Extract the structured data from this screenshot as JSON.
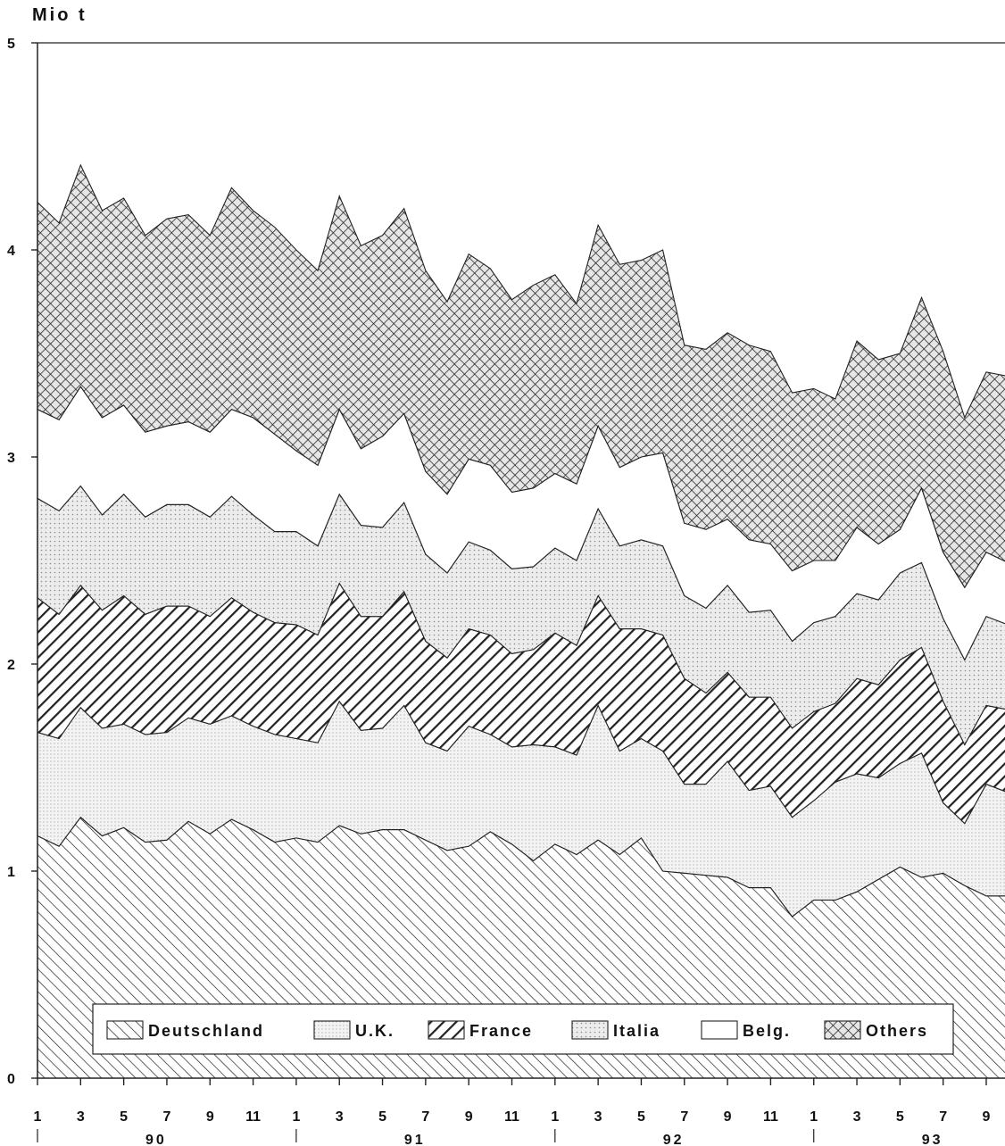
{
  "chart_data": {
    "type": "area",
    "stacked": true,
    "ylabel": "Mio t",
    "ylim": [
      0,
      5
    ],
    "yticks": [
      0,
      1,
      2,
      3,
      4,
      5
    ],
    "x": [
      1,
      2,
      3,
      4,
      5,
      6,
      7,
      8,
      9,
      10,
      11,
      12,
      13,
      14,
      15,
      16,
      17,
      18,
      19,
      20,
      21,
      22,
      23,
      24,
      25,
      26,
      27,
      28,
      29,
      30,
      31,
      32,
      33,
      34,
      35,
      36,
      37,
      38,
      39,
      40,
      41,
      42,
      43,
      44,
      45,
      46,
      47,
      48
    ],
    "x_tick_labels": [
      "1",
      "3",
      "5",
      "7",
      "9",
      "11",
      "1",
      "3",
      "5",
      "7",
      "9",
      "11",
      "1",
      "3",
      "5",
      "7",
      "9",
      "11",
      "1",
      "3",
      "5",
      "7",
      "9"
    ],
    "years": [
      "90",
      "91",
      "92",
      "93"
    ],
    "legend_position": "bottom",
    "grid": false,
    "series": [
      {
        "name": "Deutschland",
        "pattern": "light-diagonal-hatch",
        "values": [
          1.17,
          1.12,
          1.26,
          1.17,
          1.21,
          1.14,
          1.15,
          1.24,
          1.18,
          1.25,
          1.2,
          1.14,
          1.16,
          1.14,
          1.22,
          1.18,
          1.2,
          1.2,
          1.15,
          1.1,
          1.12,
          1.19,
          1.13,
          1.05,
          1.13,
          1.08,
          1.15,
          1.08,
          1.16,
          1.0,
          0.99,
          0.98,
          0.97,
          0.92,
          0.92,
          0.78,
          0.86,
          0.86,
          0.9,
          0.96,
          1.02,
          0.97,
          0.99,
          0.93,
          0.88,
          0.88,
          0.86,
          0.9
        ]
      },
      {
        "name": "U.K.",
        "pattern": "fine-dots",
        "values": [
          0.5,
          0.52,
          0.53,
          0.52,
          0.5,
          0.52,
          0.52,
          0.5,
          0.53,
          0.5,
          0.5,
          0.52,
          0.48,
          0.48,
          0.6,
          0.5,
          0.49,
          0.6,
          0.47,
          0.48,
          0.58,
          0.47,
          0.47,
          0.56,
          0.47,
          0.48,
          0.65,
          0.5,
          0.48,
          0.58,
          0.43,
          0.44,
          0.56,
          0.47,
          0.49,
          0.48,
          0.48,
          0.57,
          0.57,
          0.49,
          0.5,
          0.6,
          0.34,
          0.3,
          0.54,
          0.5,
          0.47,
          0.5
        ]
      },
      {
        "name": "France",
        "pattern": "heavy-diagonal-hatch",
        "values": [
          0.65,
          0.6,
          0.59,
          0.57,
          0.62,
          0.58,
          0.61,
          0.54,
          0.52,
          0.57,
          0.55,
          0.54,
          0.55,
          0.52,
          0.57,
          0.55,
          0.54,
          0.55,
          0.49,
          0.45,
          0.47,
          0.48,
          0.45,
          0.46,
          0.55,
          0.53,
          0.53,
          0.59,
          0.53,
          0.56,
          0.51,
          0.44,
          0.43,
          0.45,
          0.43,
          0.43,
          0.43,
          0.38,
          0.46,
          0.45,
          0.5,
          0.51,
          0.49,
          0.38,
          0.38,
          0.4,
          0.41,
          0.43
        ]
      },
      {
        "name": "Italia",
        "pattern": "dots",
        "values": [
          0.48,
          0.5,
          0.48,
          0.46,
          0.49,
          0.47,
          0.49,
          0.49,
          0.48,
          0.49,
          0.47,
          0.44,
          0.45,
          0.43,
          0.43,
          0.44,
          0.43,
          0.43,
          0.42,
          0.41,
          0.42,
          0.41,
          0.41,
          0.4,
          0.41,
          0.41,
          0.42,
          0.4,
          0.43,
          0.43,
          0.4,
          0.41,
          0.42,
          0.41,
          0.42,
          0.42,
          0.43,
          0.42,
          0.41,
          0.41,
          0.42,
          0.41,
          0.4,
          0.41,
          0.43,
          0.41,
          0.41,
          0.42
        ]
      },
      {
        "name": "Belg.",
        "pattern": "blank",
        "values": [
          0.43,
          0.44,
          0.48,
          0.47,
          0.43,
          0.41,
          0.38,
          0.4,
          0.41,
          0.42,
          0.47,
          0.47,
          0.39,
          0.39,
          0.41,
          0.37,
          0.44,
          0.43,
          0.4,
          0.38,
          0.4,
          0.41,
          0.37,
          0.38,
          0.36,
          0.37,
          0.4,
          0.38,
          0.4,
          0.45,
          0.35,
          0.38,
          0.32,
          0.35,
          0.32,
          0.34,
          0.3,
          0.27,
          0.32,
          0.27,
          0.21,
          0.36,
          0.32,
          0.35,
          0.31,
          0.3,
          0.33,
          0.35
        ]
      },
      {
        "name": "Others",
        "pattern": "crosshatch",
        "values": [
          1.0,
          0.95,
          1.07,
          1.0,
          1.0,
          0.95,
          1.0,
          1.0,
          0.95,
          1.07,
          1.0,
          1.0,
          0.97,
          0.94,
          1.03,
          0.98,
          0.97,
          0.99,
          0.97,
          0.93,
          0.99,
          0.95,
          0.93,
          0.98,
          0.96,
          0.87,
          0.97,
          0.98,
          0.95,
          0.98,
          0.86,
          0.87,
          0.9,
          0.94,
          0.93,
          0.86,
          0.83,
          0.78,
          0.9,
          0.89,
          0.85,
          0.92,
          0.97,
          0.82,
          0.87,
          0.9,
          0.92,
          0.94
        ]
      }
    ]
  }
}
